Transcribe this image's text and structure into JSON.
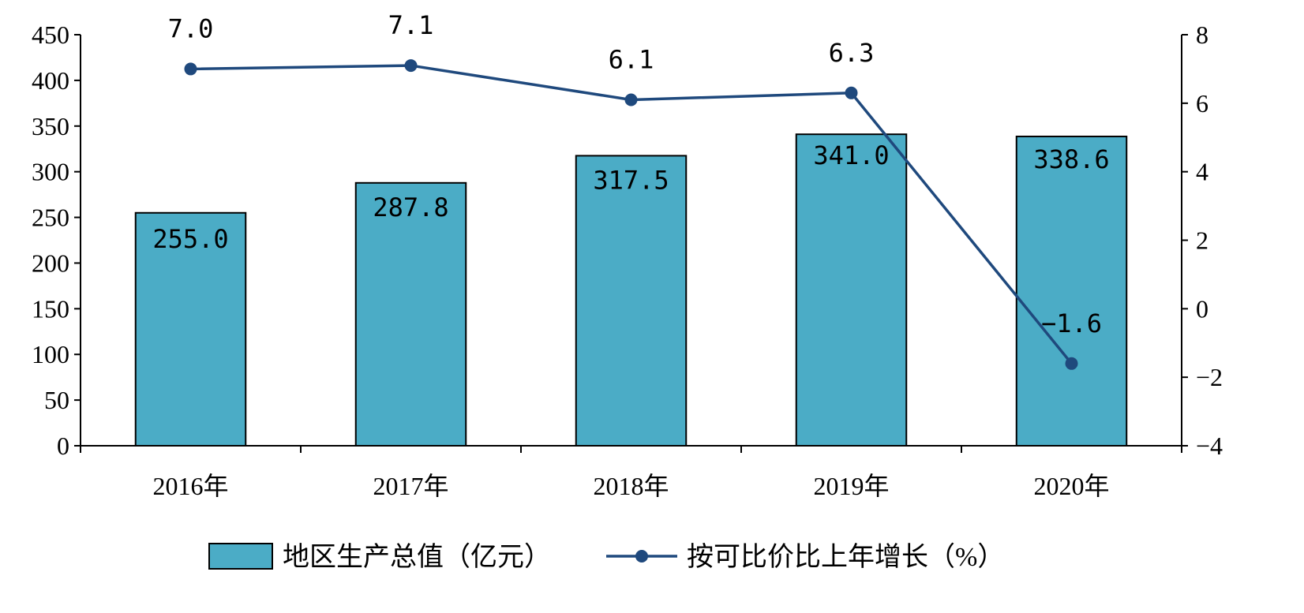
{
  "chart_data": {
    "type": "bar",
    "categories": [
      "2016年",
      "2017年",
      "2018年",
      "2019年",
      "2020年"
    ],
    "series": [
      {
        "name": "地区生产总值（亿元）",
        "type": "bar",
        "axis": "left",
        "values": [
          255.0,
          287.8,
          317.5,
          341.0,
          338.6
        ],
        "labels": [
          "255.0",
          "287.8",
          "317.5",
          "341.0",
          "338.6"
        ],
        "color": "#4BACC6"
      },
      {
        "name": "按可比价比上年增长（%）",
        "type": "line",
        "axis": "right",
        "values": [
          7.0,
          7.1,
          6.1,
          6.3,
          -1.6
        ],
        "labels": [
          "7.0",
          "7.1",
          "6.1",
          "6.3",
          "-1.6"
        ],
        "color": "#1F497D"
      }
    ],
    "y_left": {
      "min": 0,
      "max": 450,
      "step": 50,
      "ticks": [
        "0",
        "50",
        "100",
        "150",
        "200",
        "250",
        "300",
        "350",
        "400",
        "450"
      ]
    },
    "y_right": {
      "min": -4,
      "max": 8,
      "step": 2,
      "ticks": [
        "-4",
        "-2",
        "0",
        "2",
        "4",
        "6",
        "8"
      ]
    },
    "title": "",
    "xlabel": "",
    "ylabel": "",
    "grid": false,
    "legend_position": "bottom-center"
  }
}
